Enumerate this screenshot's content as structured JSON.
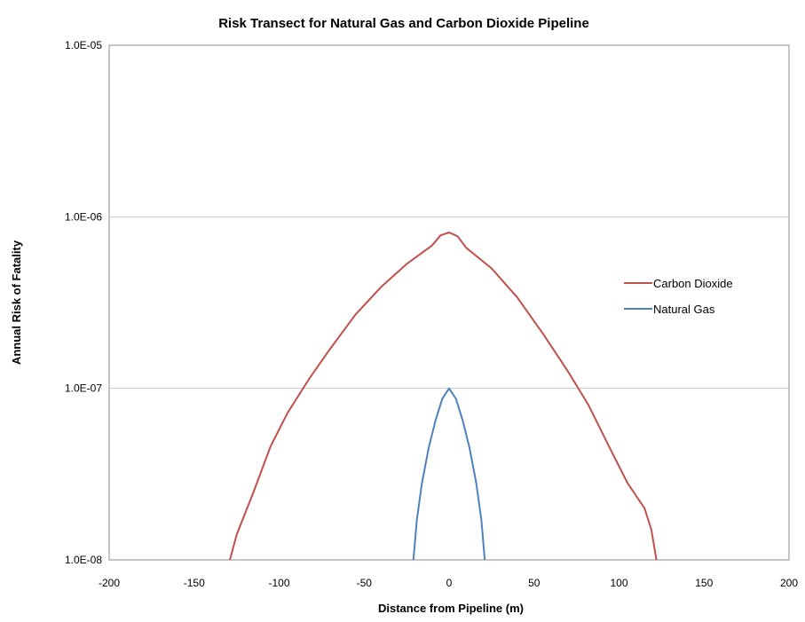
{
  "chart_data": {
    "type": "line",
    "title": "Risk Transect for Natural Gas and Carbon Dioxide Pipeline",
    "xlabel": "Distance from Pipeline (m)",
    "ylabel": "Annual Risk of Fatality",
    "xlim": [
      -200,
      200
    ],
    "ylim": [
      1e-08,
      1e-05
    ],
    "yscale": "log",
    "x_ticks": [
      -200,
      -150,
      -100,
      -50,
      0,
      50,
      100,
      150,
      200
    ],
    "x_tick_labels": [
      "-200",
      "-150",
      "-100",
      "-50",
      "0",
      "50",
      "100",
      "150",
      "200"
    ],
    "y_ticks": [
      1e-08,
      1e-07,
      1e-06,
      1e-05
    ],
    "y_tick_labels": [
      "1.0E-08",
      "1.0E-07",
      "1.0E-06",
      "1.0E-05"
    ],
    "grid": "horizontal",
    "legend_position": "right",
    "series": [
      {
        "name": "Carbon Dioxide",
        "color": "#c0504d",
        "x": [
          -129,
          -125,
          -115,
          -105,
          -95,
          -82,
          -70,
          -55,
          -40,
          -25,
          -10,
          -5,
          0,
          5,
          10,
          25,
          40,
          55,
          70,
          82,
          95,
          105,
          115,
          119,
          122
        ],
        "y": [
          1e-08,
          1.4e-08,
          2.5e-08,
          4.6e-08,
          7.2e-08,
          1.15e-07,
          1.7e-07,
          2.7e-07,
          3.9e-07,
          5.3e-07,
          6.8e-07,
          7.8e-07,
          8.1e-07,
          7.7e-07,
          6.6e-07,
          5e-07,
          3.4e-07,
          2.1e-07,
          1.25e-07,
          8e-08,
          4.4e-08,
          2.8e-08,
          2e-08,
          1.5e-08,
          1e-08
        ]
      },
      {
        "name": "Natural Gas",
        "color": "#4f81bd",
        "x": [
          -21,
          -19,
          -16,
          -12,
          -8,
          -4,
          0,
          4,
          8,
          12,
          16,
          19,
          21
        ],
        "y": [
          1e-08,
          1.7e-08,
          2.8e-08,
          4.5e-08,
          6.5e-08,
          8.7e-08,
          1e-07,
          8.7e-08,
          6.5e-08,
          4.5e-08,
          2.8e-08,
          1.7e-08,
          1e-08
        ]
      }
    ]
  }
}
